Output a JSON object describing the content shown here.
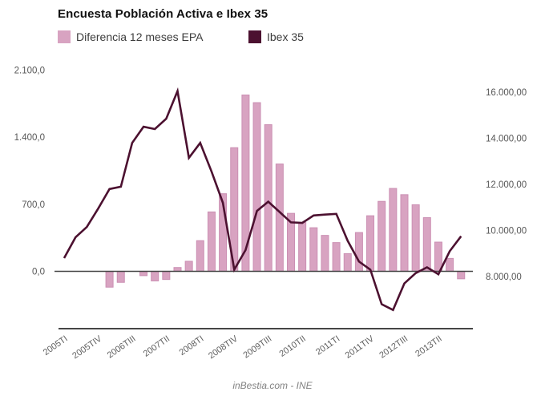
{
  "title": "Encuesta Población Activa e Ibex 35",
  "footer": "inBestia.com - INE",
  "legend": [
    {
      "label": "Diferencia 12 meses EPA",
      "color": "#d8a3c1"
    },
    {
      "label": "Ibex 35",
      "color": "#4c1130"
    }
  ],
  "chart_data": {
    "type": "bar+line combo, dual axis",
    "title": "Encuesta Población Activa e Ibex 35",
    "source": "inBestia.com - INE",
    "grid": "off",
    "legend_position": "top",
    "categories": [
      "2005TI",
      "2005TII",
      "2005TIII",
      "2005TIV",
      "2006TI",
      "2006TII",
      "2006TIII",
      "2006TIV",
      "2007TI",
      "2007TII",
      "2007TIII",
      "2007TIV",
      "2008TI",
      "2008TII",
      "2008TIII",
      "2008TIV",
      "2009TI",
      "2009TII",
      "2009TIII",
      "2009TIV",
      "2010TI",
      "2010TII",
      "2010TIII",
      "2010TIV",
      "2011TI",
      "2011TII",
      "2011TIII",
      "2011TIV",
      "2012TI",
      "2012TII",
      "2012TIII",
      "2012TIV",
      "2013TI",
      "2013TII",
      "2013TIII",
      "2013TIV"
    ],
    "series": [
      {
        "name": "Diferencia 12 meses EPA",
        "type": "bar",
        "axis": "left",
        "color": "#d8a3c1",
        "border_color": "#cb8fb3",
        "values": [
          null,
          null,
          null,
          null,
          -165,
          -115,
          0,
          -45,
          -100,
          -85,
          40,
          105,
          320,
          620,
          810,
          1290,
          1840,
          1760,
          1530,
          1120,
          605,
          510,
          455,
          375,
          300,
          185,
          405,
          580,
          730,
          865,
          800,
          695,
          560,
          305,
          135,
          -78
        ]
      },
      {
        "name": "Ibex 35",
        "type": "line",
        "axis": "right",
        "color": "#4c1130",
        "values": [
          8800,
          9700,
          10150,
          10950,
          11800,
          11900,
          13800,
          14500,
          14400,
          14850,
          16050,
          13150,
          13800,
          12550,
          11200,
          8300,
          9150,
          10850,
          11250,
          10800,
          10350,
          10330,
          10650,
          10690,
          10720,
          9550,
          8650,
          8300,
          6800,
          6550,
          7700,
          8150,
          8400,
          8100,
          9100,
          9750
        ]
      }
    ],
    "left_axis": {
      "range_visible": [
        -600,
        2150
      ],
      "ticks": [
        {
          "label": "2.100,0",
          "value": 2100
        },
        {
          "label": "1.400,0",
          "value": 1400
        },
        {
          "label": "700,0",
          "value": 700
        },
        {
          "label": "0,0",
          "value": 0
        }
      ]
    },
    "right_axis": {
      "range_visible": [
        5750,
        16150
      ],
      "ticks": [
        {
          "label": "16.000,00",
          "value": 16000
        },
        {
          "label": "14.000,00",
          "value": 14000
        },
        {
          "label": "12.000,00",
          "value": 12000
        },
        {
          "label": "10.000,00",
          "value": 10000
        },
        {
          "label": "8.000,00",
          "value": 8000
        }
      ]
    },
    "x_ticks": [
      {
        "index": 0,
        "label": "2005TI"
      },
      {
        "index": 3,
        "label": "2005TIV"
      },
      {
        "index": 6,
        "label": "2006TIII"
      },
      {
        "index": 9,
        "label": "2007TII"
      },
      {
        "index": 12,
        "label": "2008TI"
      },
      {
        "index": 15,
        "label": "2008TIV"
      },
      {
        "index": 18,
        "label": "2009TIII"
      },
      {
        "index": 21,
        "label": "2010TII"
      },
      {
        "index": 24,
        "label": "2011TI"
      },
      {
        "index": 27,
        "label": "2011TIV"
      },
      {
        "index": 30,
        "label": "2012TIII"
      },
      {
        "index": 33,
        "label": "2013TII"
      }
    ]
  }
}
